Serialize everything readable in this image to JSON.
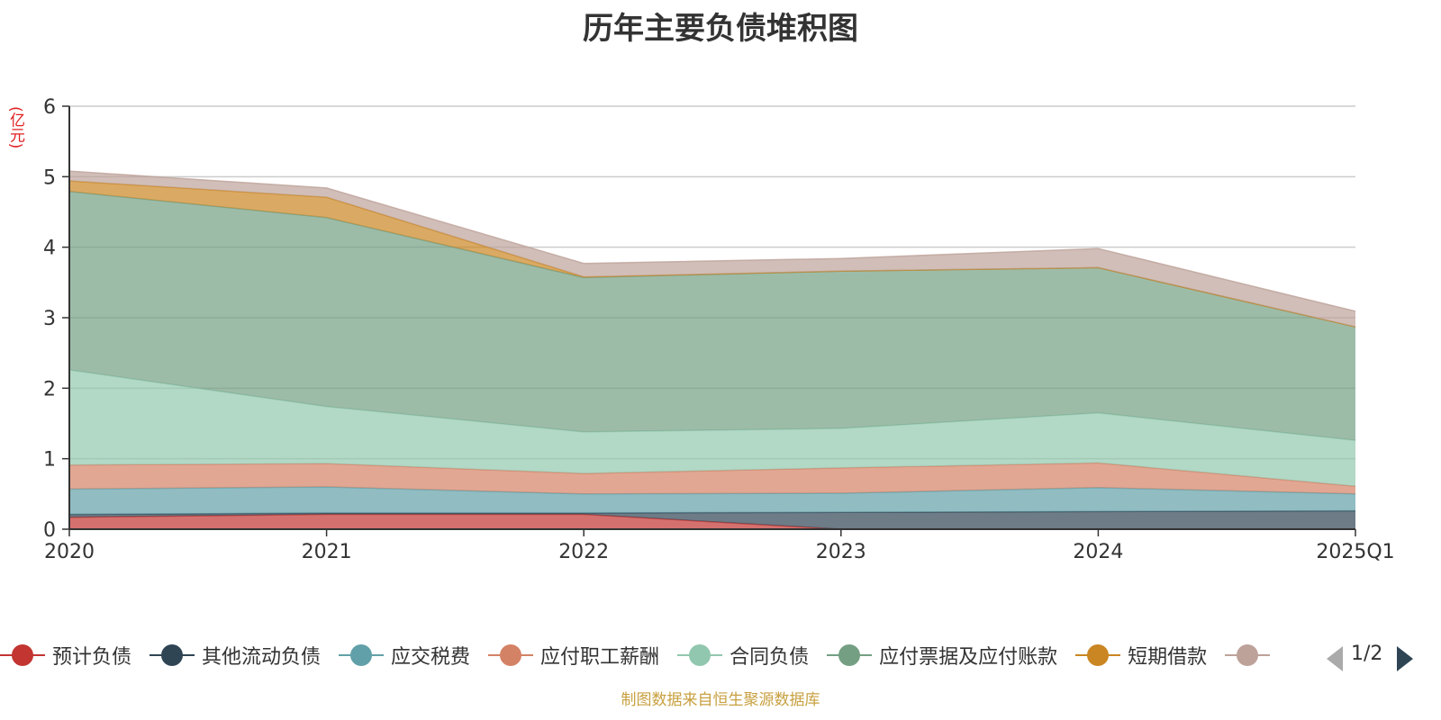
{
  "chart_data": {
    "type": "area",
    "stacked": true,
    "title": "历年主要负债堆积图",
    "unit_label": "(亿元)",
    "categories": [
      "2020",
      "2021",
      "2022",
      "2023",
      "2024",
      "2025Q1"
    ],
    "ylim": [
      0,
      6
    ],
    "yticks": [
      "0",
      "1",
      "2",
      "3",
      "4",
      "5",
      "6"
    ],
    "grid": true,
    "legend_position": "bottom",
    "series": [
      {
        "name": "预计负债",
        "color": "#c23531",
        "values": [
          0.17,
          0.21,
          0.21,
          0.0,
          0.0,
          0.0
        ]
      },
      {
        "name": "其他流动负债",
        "color": "#2f4554",
        "values": [
          0.04,
          0.02,
          0.02,
          0.24,
          0.25,
          0.26
        ]
      },
      {
        "name": "应交税费",
        "color": "#61a0a8",
        "values": [
          0.36,
          0.37,
          0.27,
          0.27,
          0.34,
          0.24
        ]
      },
      {
        "name": "应付职工薪酬",
        "color": "#d48265",
        "values": [
          0.34,
          0.33,
          0.29,
          0.36,
          0.35,
          0.11
        ]
      },
      {
        "name": "合同负债",
        "color": "#91c7ae",
        "values": [
          1.35,
          0.81,
          0.59,
          0.56,
          0.71,
          0.65
        ]
      },
      {
        "name": "应付票据及应付账款",
        "color": "#749f83",
        "values": [
          2.53,
          2.68,
          2.19,
          2.23,
          2.06,
          1.61
        ]
      },
      {
        "name": "短期借款",
        "color": "#ca8622",
        "values": [
          0.15,
          0.29,
          0.01,
          0.0,
          0.0,
          0.0
        ]
      },
      {
        "name": "",
        "color": "#bda29a",
        "values": [
          0.14,
          0.13,
          0.19,
          0.18,
          0.27,
          0.22
        ]
      }
    ]
  },
  "legend_page": "1/2",
  "source": "制图数据来自恒生聚源数据库"
}
